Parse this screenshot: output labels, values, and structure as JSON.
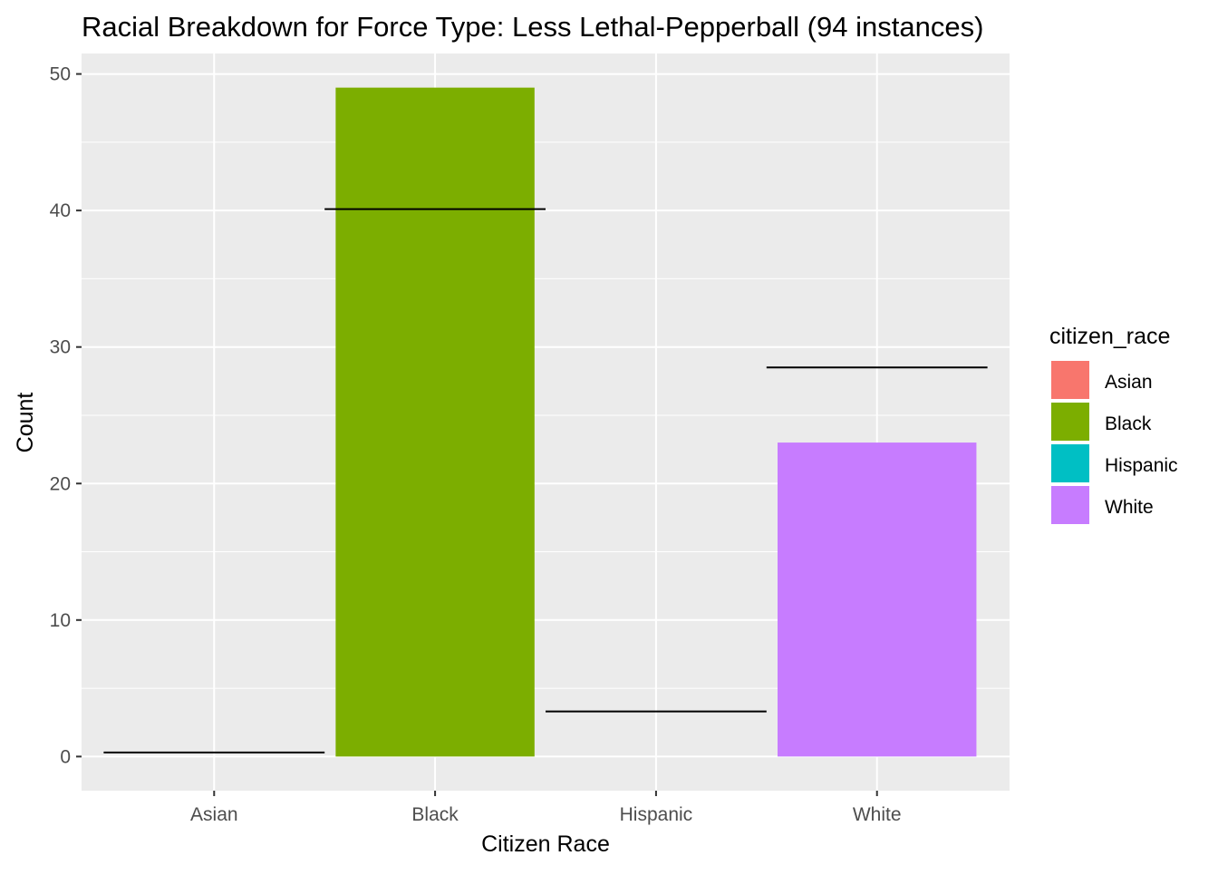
{
  "chart_data": {
    "type": "bar",
    "title": "Racial Breakdown for Force Type: Less Lethal-Pepperball (94 instances)",
    "xlabel": "Citizen Race",
    "ylabel": "Count",
    "categories": [
      "Asian",
      "Black",
      "Hispanic",
      "White"
    ],
    "values": [
      0,
      49,
      0,
      23
    ],
    "reference_values": [
      0.3,
      40.1,
      3.3,
      28.5
    ],
    "ylim": [
      -2.5,
      51.5
    ],
    "yticks": [
      0,
      10,
      20,
      30,
      40,
      50
    ],
    "grid": true,
    "legend": {
      "title": "citizen_race",
      "placement": "right",
      "entries": [
        "Asian",
        "Black",
        "Hispanic",
        "White"
      ]
    },
    "colors": {
      "Asian": "#F8766D",
      "Black": "#7CAE00",
      "Hispanic": "#00BFC4",
      "White": "#C77CFF",
      "panel_background": "#EBEBEB",
      "grid": "#FFFFFF",
      "reference_line": "#000000"
    }
  }
}
